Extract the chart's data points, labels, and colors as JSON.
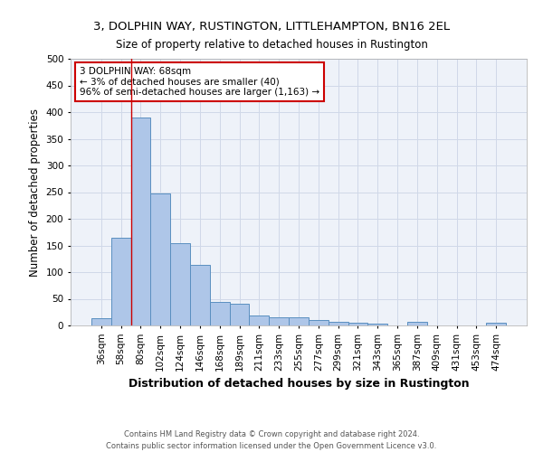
{
  "title": "3, DOLPHIN WAY, RUSTINGTON, LITTLEHAMPTON, BN16 2EL",
  "subtitle": "Size of property relative to detached houses in Rustington",
  "xlabel": "Distribution of detached houses by size in Rustington",
  "ylabel": "Number of detached properties",
  "categories": [
    "36sqm",
    "58sqm",
    "80sqm",
    "102sqm",
    "124sqm",
    "146sqm",
    "168sqm",
    "189sqm",
    "211sqm",
    "233sqm",
    "255sqm",
    "277sqm",
    "299sqm",
    "321sqm",
    "343sqm",
    "365sqm",
    "387sqm",
    "409sqm",
    "431sqm",
    "453sqm",
    "474sqm"
  ],
  "values": [
    13,
    165,
    390,
    248,
    155,
    113,
    44,
    40,
    18,
    15,
    15,
    10,
    6,
    5,
    4,
    0,
    7,
    0,
    0,
    0,
    5
  ],
  "bar_color": "#aec6e8",
  "bar_edge_color": "#5a8fc0",
  "annotation_text": "3 DOLPHIN WAY: 68sqm\n← 3% of detached houses are smaller (40)\n96% of semi-detached houses are larger (1,163) →",
  "annotation_box_color": "#ffffff",
  "annotation_box_edge": "#cc0000",
  "grid_color": "#d0d8e8",
  "background_color": "#eef2f9",
  "footer": "Contains HM Land Registry data © Crown copyright and database right 2024.\nContains public sector information licensed under the Open Government Licence v3.0.",
  "ylim": [
    0,
    500
  ],
  "yticks": [
    0,
    50,
    100,
    150,
    200,
    250,
    300,
    350,
    400,
    450,
    500
  ]
}
